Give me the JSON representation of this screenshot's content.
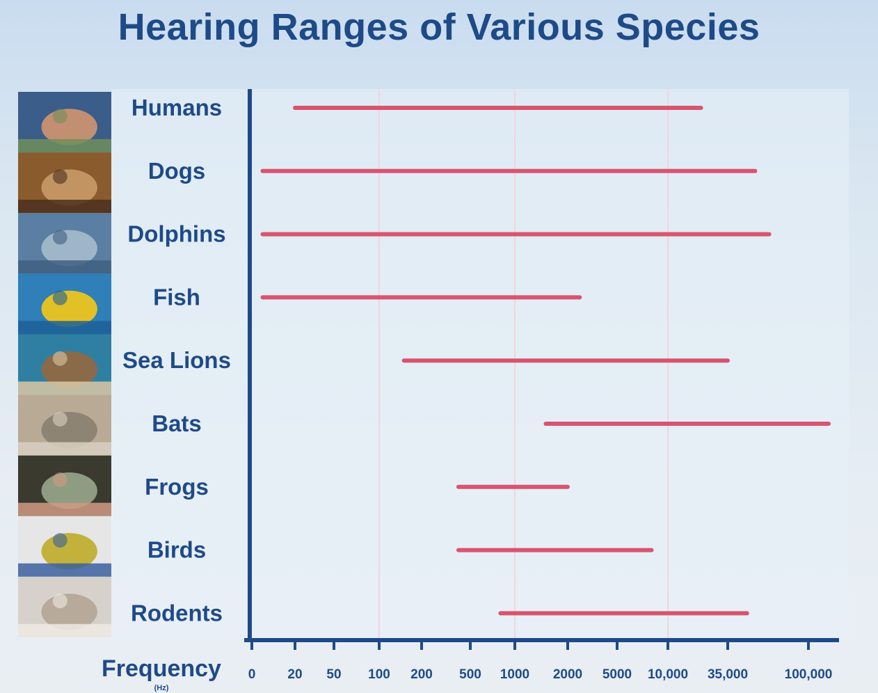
{
  "title": "Hearing Ranges of Various Species",
  "chart_data": {
    "type": "bar",
    "orientation": "horizontal-range",
    "title": "Hearing Ranges of Various Species",
    "xlabel": "Frequency",
    "xunit": "(Hz)",
    "x_scale": "categorical-log-like",
    "x_ticks": [
      "0",
      "20",
      "50",
      "100",
      "200",
      "500",
      "1000",
      "2000",
      "5000",
      "10,000",
      "35,000",
      "100,000"
    ],
    "gridlines_at": [
      "100",
      "1000",
      "10,000"
    ],
    "categories": [
      "Humans",
      "Dogs",
      "Dolphins",
      "Fish",
      "Sea Lions",
      "Bats",
      "Frogs",
      "Birds",
      "Rodents"
    ],
    "ranges_hz": [
      {
        "name": "Humans",
        "low": 20,
        "high": 20000
      },
      {
        "name": "Dogs",
        "low": 5,
        "high": 50000
      },
      {
        "name": "Dolphins",
        "low": 5,
        "high": 60000
      },
      {
        "name": "Fish",
        "low": 5,
        "high": 2500
      },
      {
        "name": "Sea Lions",
        "low": 150,
        "high": 35000
      },
      {
        "name": "Bats",
        "low": 1500,
        "high": 130000
      },
      {
        "name": "Frogs",
        "low": 400,
        "high": 2000
      },
      {
        "name": "Birds",
        "low": 400,
        "high": 8000
      },
      {
        "name": "Rodents",
        "low": 800,
        "high": 45000
      }
    ],
    "colors": {
      "range_bar": "#d8546e",
      "axis": "#1e4a88",
      "text": "#1e4a88",
      "grid": "#efd6e0"
    },
    "grid": true,
    "legend": "none"
  },
  "images": [
    {
      "species": "Humans",
      "icon": "human-photo-icon",
      "colors": [
        "#3a5d8a",
        "#c28f72",
        "#6f8e5b"
      ]
    },
    {
      "species": "Dogs",
      "icon": "dog-photo-icon",
      "colors": [
        "#8a5b2d",
        "#c29461",
        "#4a3020"
      ]
    },
    {
      "species": "Dolphins",
      "icon": "dolphin-photo-icon",
      "colors": [
        "#5b7fa2",
        "#9fb6c9",
        "#3f5f80"
      ]
    },
    {
      "species": "Fish",
      "icon": "fish-photo-icon",
      "colors": [
        "#2f7fb8",
        "#e2c126",
        "#1d5f96"
      ]
    },
    {
      "species": "Sea Lions",
      "icon": "sea-lion-photo-icon",
      "colors": [
        "#2f7fa2",
        "#8a6a49",
        "#d9c8a4"
      ]
    },
    {
      "species": "Bats",
      "icon": "bat-photo-icon",
      "colors": [
        "#b9aa95",
        "#8e8474",
        "#d8d0c2"
      ]
    },
    {
      "species": "Frogs",
      "icon": "frog-photo-icon",
      "colors": [
        "#3a3a2e",
        "#8e9c82",
        "#d19a82"
      ]
    },
    {
      "species": "Birds",
      "icon": "bird-photo-icon",
      "colors": [
        "#e6e6e6",
        "#c2b23b",
        "#3b5f9e"
      ]
    },
    {
      "species": "Rodents",
      "icon": "rodent-photo-icon",
      "colors": [
        "#d6d2cb",
        "#b8aa9a",
        "#efeae3"
      ]
    }
  ]
}
